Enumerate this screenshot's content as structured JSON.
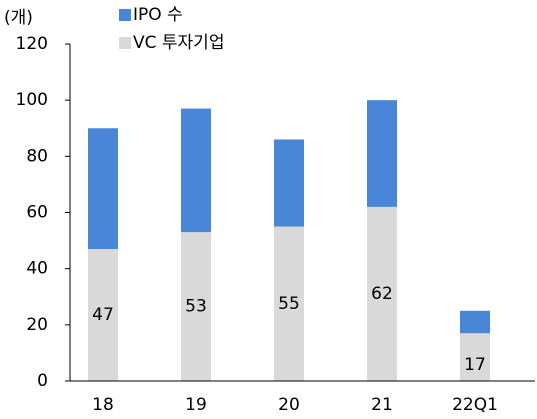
{
  "chart_data": {
    "type": "stacked_bar",
    "unit_label": "(개)",
    "categories": [
      "18",
      "19",
      "20",
      "21",
      "22Q1"
    ],
    "series": [
      {
        "name": "VC 투자기업",
        "color": "#d9d9d9",
        "values": [
          47,
          53,
          55,
          62,
          17
        ]
      },
      {
        "name": "IPO 수",
        "color": "#4a86d8",
        "values": [
          43,
          44,
          31,
          38,
          8
        ]
      }
    ],
    "ylim": [
      0,
      120
    ],
    "yticks": [
      0,
      20,
      40,
      60,
      80,
      100,
      120
    ]
  }
}
